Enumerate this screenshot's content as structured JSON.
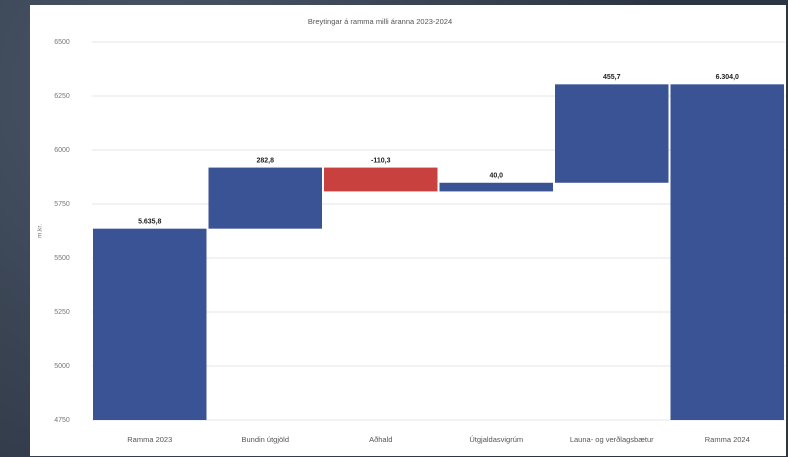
{
  "chart_data": {
    "type": "waterfall",
    "title": "Breytingar á ramma milli áranna 2023-2024",
    "y_label": "m.kr.",
    "categories": [
      "Ramma 2023",
      "Bundin útgjöld",
      "Aðhald",
      "Útgjaldasvigrúm",
      "Launa- og verðlagsbætur",
      "Ramma 2024"
    ],
    "values": [
      5635.8,
      282.8,
      -110.3,
      40.0,
      455.7,
      6304.0
    ],
    "value_labels": [
      "5.635,8",
      "282,8",
      "-110,3",
      "40,0",
      "455,7",
      "6.304,0"
    ],
    "colors": {
      "increase": "#3a5395",
      "decrease": "#c9413f",
      "total": "#3a5395"
    },
    "ylim": [
      4750,
      6500
    ],
    "yticks": [
      4750,
      5000,
      5250,
      5500,
      5750,
      6000,
      6250,
      6500
    ],
    "grid": true
  }
}
